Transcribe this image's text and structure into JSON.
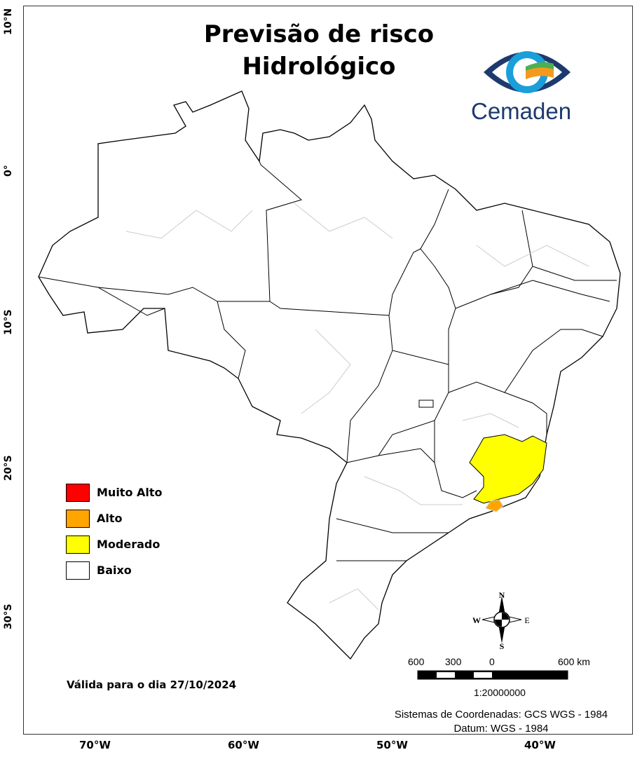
{
  "title_line1": "Previsão de risco",
  "title_line2": "Hidrológico",
  "logo": {
    "text": "Cemaden",
    "colors": {
      "blue": "#1d3a6e",
      "cyan": "#1a9fd9",
      "green": "#4caf50",
      "orange": "#f39a1e"
    }
  },
  "latitude_labels": [
    "10°N",
    "0°",
    "10°S",
    "20°S",
    "30°S"
  ],
  "longitude_labels": [
    "70°W",
    "60°W",
    "50°W",
    "40°W"
  ],
  "legend": [
    {
      "label": "Muito Alto",
      "color": "#ff0000"
    },
    {
      "label": "Alto",
      "color": "#ffa500"
    },
    {
      "label": "Moderado",
      "color": "#ffff00"
    },
    {
      "label": "Baixo",
      "color": "#ffffff"
    }
  ],
  "valid_text": "Válida para  o dia 27/10/2024",
  "compass": {
    "n": "N",
    "s": "S",
    "e": "E",
    "w": "W"
  },
  "scale": {
    "labels": [
      "600",
      "300",
      "0",
      "600 km"
    ],
    "ratio": "1:20000000"
  },
  "crs_line1": "Sistemas de Coordenadas: GCS WGS - 1984",
  "crs_line2": "Datum: WGS - 1984"
}
